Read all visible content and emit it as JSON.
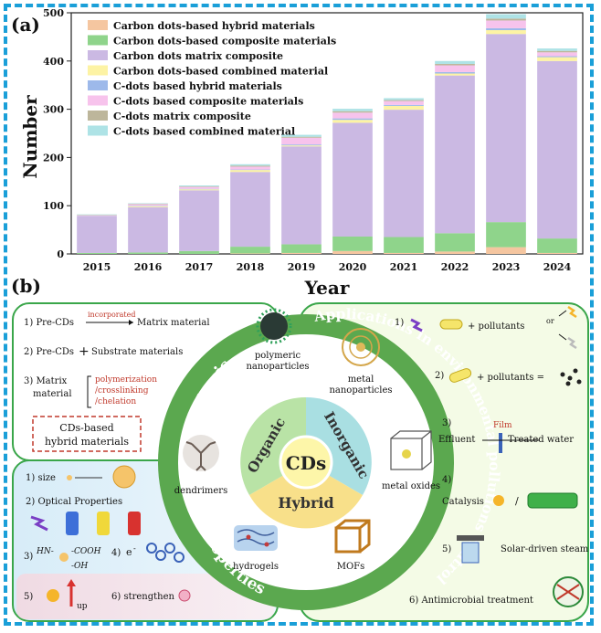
{
  "panel_a": {
    "label": "(a)",
    "chart_data": {
      "type": "bar",
      "stacked": true,
      "xlabel": "Year",
      "ylabel": "Number",
      "ylim": [
        0,
        500
      ],
      "yticks": [
        0,
        100,
        200,
        300,
        400,
        500
      ],
      "categories": [
        "2015",
        "2016",
        "2017",
        "2018",
        "2019",
        "2020",
        "2021",
        "2022",
        "2023",
        "2024"
      ],
      "legend_position": "top-left",
      "series": [
        {
          "name": "Carbon dots-based hybrid materials",
          "color": "#f5c6a0",
          "values": [
            0,
            0,
            0,
            1,
            2,
            6,
            2,
            5,
            14,
            2
          ]
        },
        {
          "name": "Carbon dots-based composite materials",
          "color": "#8fd48b",
          "values": [
            2,
            3,
            6,
            14,
            18,
            30,
            33,
            38,
            52,
            30
          ]
        },
        {
          "name": "Carbon dots matrix composite",
          "color": "#cbb9e3",
          "values": [
            77,
            94,
            126,
            155,
            203,
            236,
            264,
            327,
            390,
            368
          ]
        },
        {
          "name": "Carbon dots-based combined material",
          "color": "#fdf3a4",
          "values": [
            0,
            2,
            2,
            4,
            2,
            6,
            8,
            4,
            8,
            8
          ]
        },
        {
          "name": "C-dots based hybrid materials",
          "color": "#9db9ea",
          "values": [
            0,
            1,
            1,
            1,
            2,
            3,
            2,
            3,
            4,
            2
          ]
        },
        {
          "name": "C-dots based composite materials",
          "color": "#f7c3ec",
          "values": [
            1,
            3,
            4,
            6,
            14,
            12,
            8,
            14,
            16,
            8
          ]
        },
        {
          "name": "C-dots matrix composite",
          "color": "#bdb69b",
          "values": [
            1,
            1,
            1,
            2,
            2,
            3,
            2,
            3,
            4,
            3
          ]
        },
        {
          "name": "C-dots based combined material",
          "color": "#aee3e6",
          "values": [
            1,
            1,
            2,
            3,
            4,
            5,
            4,
            6,
            9,
            5
          ]
        }
      ]
    }
  },
  "panel_b": {
    "label": "(b)",
    "center": "CDs",
    "inner_segments": [
      "Organic",
      "Inorganic",
      "Hybrid"
    ],
    "ring_labels": {
      "synthesis": "Synthesis",
      "properties": "Properties",
      "applications": "Applications in environmental pollutions control"
    },
    "examples": [
      "polymeric nanoparticles",
      "metal nanoparticles",
      "dendrimers",
      "metal oxides",
      "hydrogels",
      "MOFs"
    ],
    "synthesis": {
      "item1_prefix": "1) Pre-CDs",
      "item1_arrow_label": "incorporated",
      "item1_suffix": "Matrix material",
      "item2": "2) Pre-CDs",
      "item2_plus": "+",
      "item2_suffix": "Substrate materials",
      "item3_label1": "3) Matrix",
      "item3_label2": "material",
      "item3_methods": [
        "polymerization",
        "/crosslinking",
        "/chelation"
      ],
      "box_line1": "CDs-based",
      "box_line2": "hybrid materials"
    },
    "properties": {
      "size": "1) size",
      "optical": "2) Optical Properties",
      "item3": "3)",
      "hn": "HN-",
      "cooh": "-COOH",
      "oh": "-OH",
      "item4": "4)",
      "electron": "e",
      "electron_sup": "-",
      "item5": "5)",
      "up": "up",
      "strengthen": "6) strengthen"
    },
    "applications": {
      "a1_num": "1)",
      "a1_text": "+ pollutants",
      "a1_or": "or",
      "a2_num": "2)",
      "a2_text": "+ pollutants =",
      "a3_num": "3)",
      "a3_film": "Film",
      "a3_effluent": "Effluent",
      "a3_treated": "Treated water",
      "a4_num": "4)",
      "a4_text": "Catalysis",
      "a4_slash": "/",
      "a5_num": "5)",
      "a5_text": "Solar-driven steam",
      "a6_text": "6) Antimicrobial treatment"
    }
  }
}
